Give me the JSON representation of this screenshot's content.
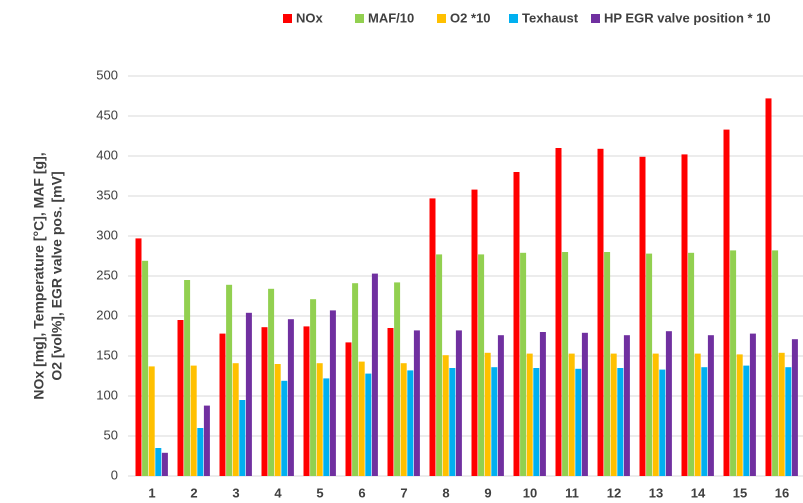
{
  "chart_data": {
    "type": "bar",
    "ylabel": [
      "NOx [mg], Temperature [°C], MAF [g],",
      "O2 [vol%], EGR valve pos. [mV]"
    ],
    "categories": [
      "1",
      "2",
      "3",
      "4",
      "5",
      "6",
      "7",
      "8",
      "9",
      "10",
      "11",
      "12",
      "13",
      "14",
      "15",
      "16"
    ],
    "series": [
      {
        "name": "NOx",
        "color": "#ff0000",
        "values": [
          297,
          195,
          178,
          186,
          187,
          167,
          185,
          347,
          358,
          380,
          410,
          409,
          399,
          402,
          433,
          472
        ]
      },
      {
        "name": "MAF/10",
        "color": "#92d050",
        "values": [
          269,
          245,
          239,
          234,
          221,
          241,
          242,
          277,
          277,
          279,
          280,
          280,
          278,
          279,
          282,
          282
        ]
      },
      {
        "name": "O2 *10",
        "color": "#ffc000",
        "values": [
          137,
          138,
          141,
          140,
          141,
          143,
          141,
          151,
          154,
          153,
          153,
          153,
          153,
          153,
          152,
          154
        ]
      },
      {
        "name": "Texhaust",
        "color": "#00b0f0",
        "values": [
          35,
          60,
          95,
          119,
          122,
          128,
          132,
          135,
          136,
          135,
          134,
          135,
          133,
          136,
          138,
          136
        ]
      },
      {
        "name": "HP EGR valve position * 10",
        "color": "#7030a0",
        "values": [
          29,
          88,
          204,
          196,
          207,
          253,
          182,
          182,
          176,
          180,
          179,
          176,
          181,
          176,
          178,
          171
        ]
      }
    ],
    "ylim": [
      0,
      500
    ],
    "yticks": [
      0,
      50,
      100,
      150,
      200,
      250,
      300,
      350,
      400,
      450,
      500
    ],
    "grid": true,
    "legend": "top"
  }
}
